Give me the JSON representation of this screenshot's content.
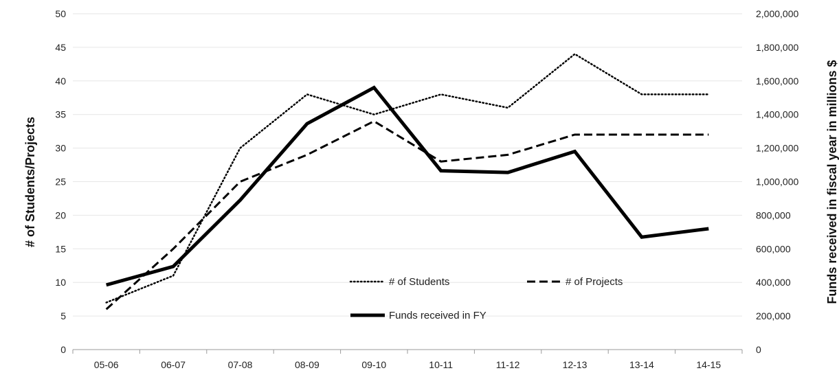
{
  "chart_data": {
    "type": "line",
    "categories": [
      "05-06",
      "06-07",
      "07-08",
      "08-09",
      "09-10",
      "10-11",
      "11-12",
      "12-13",
      "13-14",
      "14-15"
    ],
    "series": [
      {
        "name": "# of Students",
        "axis": "left",
        "line_style": "dotted",
        "color": "#000000",
        "values": [
          7,
          11,
          30,
          38,
          35,
          38,
          36,
          44,
          38,
          38
        ]
      },
      {
        "name": "# of Projects",
        "axis": "left",
        "line_style": "dashed",
        "color": "#000000",
        "values": [
          6,
          15,
          25,
          29,
          34,
          28,
          29,
          32,
          32,
          32
        ]
      },
      {
        "name": "Funds received in FY",
        "axis": "right",
        "line_style": "solid-thick",
        "color": "#000000",
        "values": [
          385000,
          495000,
          890000,
          1345000,
          1560000,
          1065000,
          1055000,
          1180000,
          670000,
          720000
        ]
      }
    ],
    "left_axis": {
      "label": "# of Students/Projects",
      "ylim": [
        0,
        50
      ],
      "ticks": [
        "0",
        "5",
        "10",
        "15",
        "20",
        "25",
        "30",
        "35",
        "40",
        "45",
        "50"
      ]
    },
    "right_axis": {
      "label": "Funds received in fiscal year in millions $",
      "ylim": [
        0,
        2000000
      ],
      "ticks": [
        "0",
        "200,000",
        "400,000",
        "600,000",
        "800,000",
        "1,000,000",
        "1,200,000",
        "1,400,000",
        "1,600,000",
        "1,800,000",
        "2,000,000"
      ]
    },
    "grid": true,
    "legend": {
      "placement": "inside-bottom-center",
      "entries": [
        "# of Students",
        "# of Projects",
        "Funds received in FY"
      ]
    }
  }
}
